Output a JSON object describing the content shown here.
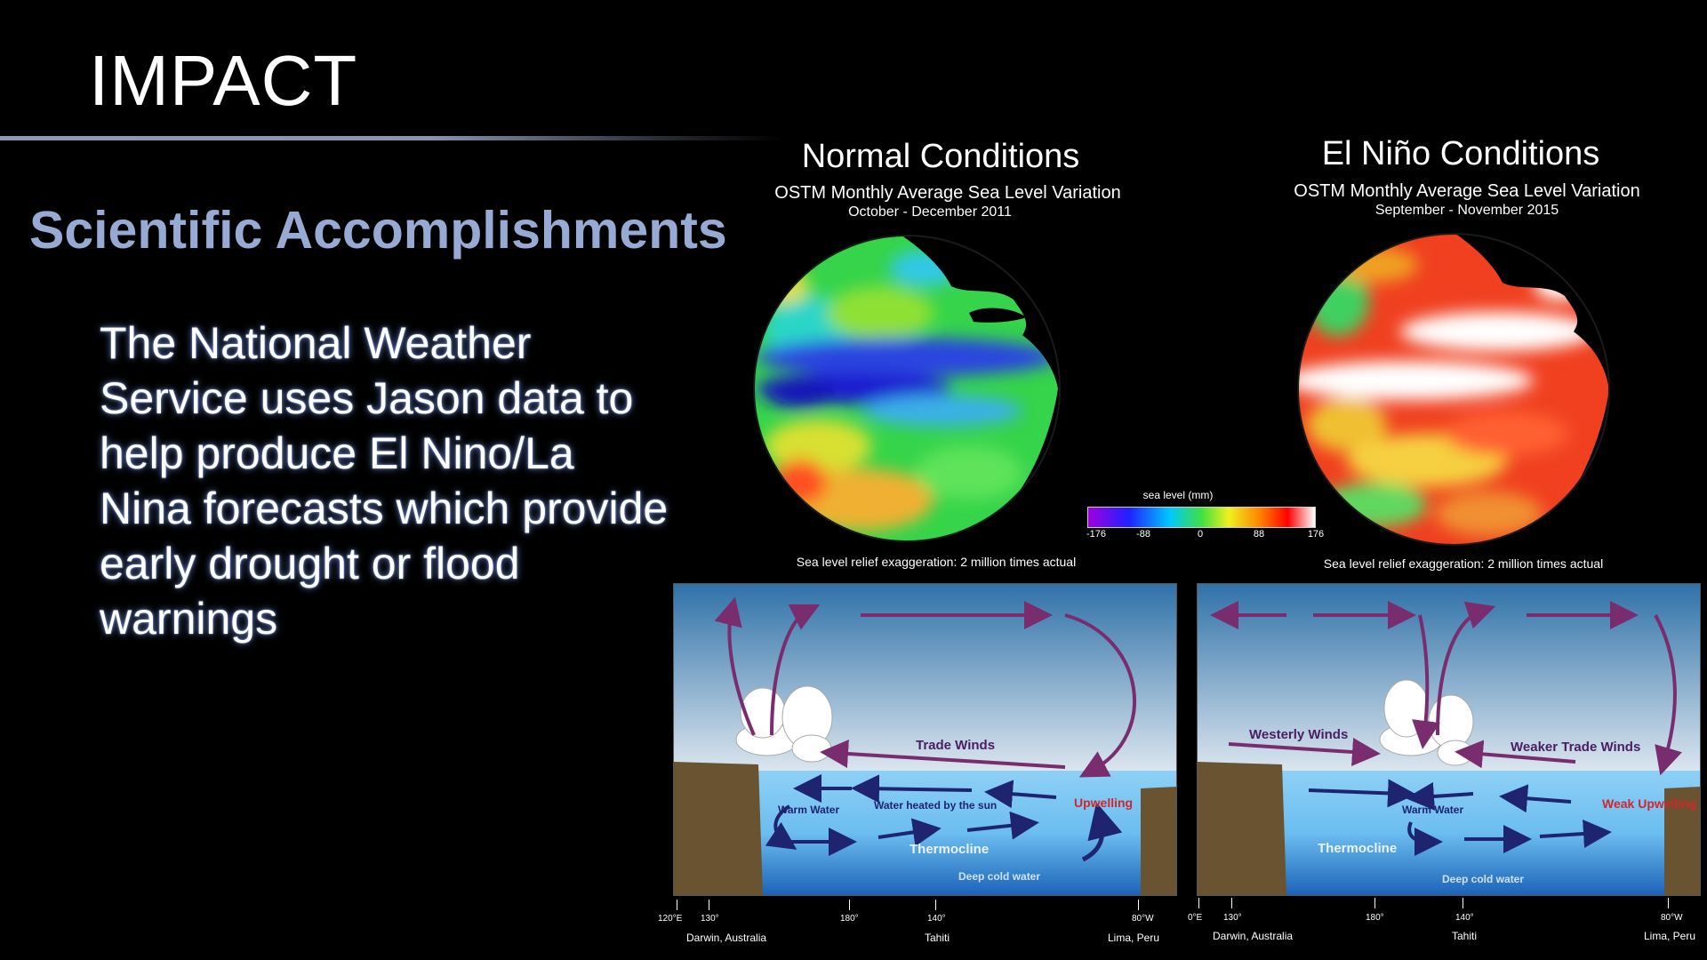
{
  "slide": {
    "title": "IMPACT",
    "heading": "Scientific Accomplishments",
    "body": "The National Weather Service uses Jason data to help produce El Nino/La Nina forecasts which provide early drought or flood warnings"
  },
  "maps": {
    "normal": {
      "title": "Normal Conditions",
      "subtitle": "OSTM Monthly Average Sea Level Variation",
      "date": "October - December 2011",
      "exaggeration": "Sea level relief exaggeration: 2 million times actual"
    },
    "el_nino": {
      "title": "El Niño Conditions",
      "subtitle": "OSTM Monthly Average Sea Level Variation",
      "date": "September - November 2015",
      "exaggeration": "Sea level relief exaggeration: 2 million times actual"
    }
  },
  "colorbar": {
    "label": "sea level (mm)",
    "ticks": [
      "-176",
      "-88",
      "0",
      "88",
      "176"
    ]
  },
  "diagrams": {
    "normal": {
      "trade_winds": "Trade Winds",
      "warm_water": "Warm Water",
      "heated": "Water heated by the sun",
      "upwelling": "Upwelling",
      "thermocline": "Thermocline",
      "deep": "Deep cold water",
      "axis": [
        "120°E",
        "130°",
        "180°",
        "140°",
        "80°W"
      ],
      "places": [
        "Darwin, Australia",
        "Tahiti",
        "Lima, Peru"
      ]
    },
    "el_nino": {
      "westerly": "Westerly Winds",
      "weaker": "Weaker Trade Winds",
      "warm_water": "Warm Water",
      "weak_upwelling": "Weak Upwelling",
      "thermocline": "Thermocline",
      "deep": "Deep cold water",
      "axis": [
        "0°E",
        "130°",
        "180°",
        "140°",
        "80°W"
      ],
      "places": [
        "Darwin, Australia",
        "Tahiti",
        "Lima, Peru"
      ]
    }
  },
  "colors": {
    "heading": "#97aad4",
    "arrow": "#7a2d6e",
    "ocean_arrow": "#1e2470",
    "upwelling": "#d3262b"
  }
}
